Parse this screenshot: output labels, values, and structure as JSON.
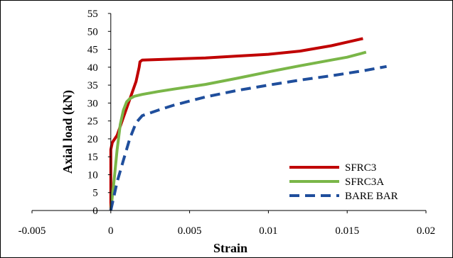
{
  "chart_data": {
    "type": "line",
    "xlabel": "Strain",
    "ylabel": "Axial load (kN)",
    "xlim": [
      -0.005,
      0.02
    ],
    "ylim": [
      0,
      55
    ],
    "x_ticks": [
      "-0.005",
      "0",
      "0.005",
      "0.01",
      "0.015",
      "0.02"
    ],
    "y_ticks": [
      "0",
      "5",
      "10",
      "15",
      "20",
      "25",
      "30",
      "35",
      "40",
      "45",
      "50",
      "55"
    ],
    "legend_position": "bottom-right",
    "series": [
      {
        "name": "SFRC3",
        "color": "#c00000",
        "style": "solid",
        "points": [
          [
            0,
            0
          ],
          [
            0,
            17
          ],
          [
            0.0001,
            19
          ],
          [
            0.0004,
            21
          ],
          [
            0.0008,
            26
          ],
          [
            0.0012,
            31
          ],
          [
            0.0016,
            36
          ],
          [
            0.0018,
            40
          ],
          [
            0.00185,
            41.5
          ],
          [
            0.002,
            42
          ],
          [
            0.004,
            42.3
          ],
          [
            0.006,
            42.6
          ],
          [
            0.008,
            43.1
          ],
          [
            0.01,
            43.6
          ],
          [
            0.012,
            44.5
          ],
          [
            0.014,
            46
          ],
          [
            0.015,
            47
          ],
          [
            0.016,
            48
          ]
        ]
      },
      {
        "name": "SFRC3A",
        "color": "#7ab648",
        "style": "solid",
        "points": [
          [
            0,
            0
          ],
          [
            0.0002,
            8
          ],
          [
            0.0004,
            17
          ],
          [
            0.0006,
            24
          ],
          [
            0.0008,
            28
          ],
          [
            0.001,
            30.3
          ],
          [
            0.0012,
            31.2
          ],
          [
            0.0015,
            31.9
          ],
          [
            0.002,
            32.4
          ],
          [
            0.003,
            33.2
          ],
          [
            0.004,
            33.9
          ],
          [
            0.006,
            35.2
          ],
          [
            0.008,
            36.9
          ],
          [
            0.01,
            38.7
          ],
          [
            0.012,
            40.4
          ],
          [
            0.014,
            42
          ],
          [
            0.015,
            42.8
          ],
          [
            0.0162,
            44.2
          ]
        ]
      },
      {
        "name": "BARE BAR",
        "color": "#1f4e9c",
        "style": "dashed",
        "points": [
          [
            0,
            0
          ],
          [
            0.0004,
            8
          ],
          [
            0.0008,
            14
          ],
          [
            0.0012,
            20
          ],
          [
            0.0016,
            24.5
          ],
          [
            0.002,
            26.5
          ],
          [
            0.003,
            28
          ],
          [
            0.004,
            29.4
          ],
          [
            0.006,
            31.7
          ],
          [
            0.008,
            33.5
          ],
          [
            0.01,
            35
          ],
          [
            0.012,
            36.4
          ],
          [
            0.014,
            37.6
          ],
          [
            0.016,
            39
          ],
          [
            0.0175,
            40.2
          ]
        ]
      }
    ]
  }
}
